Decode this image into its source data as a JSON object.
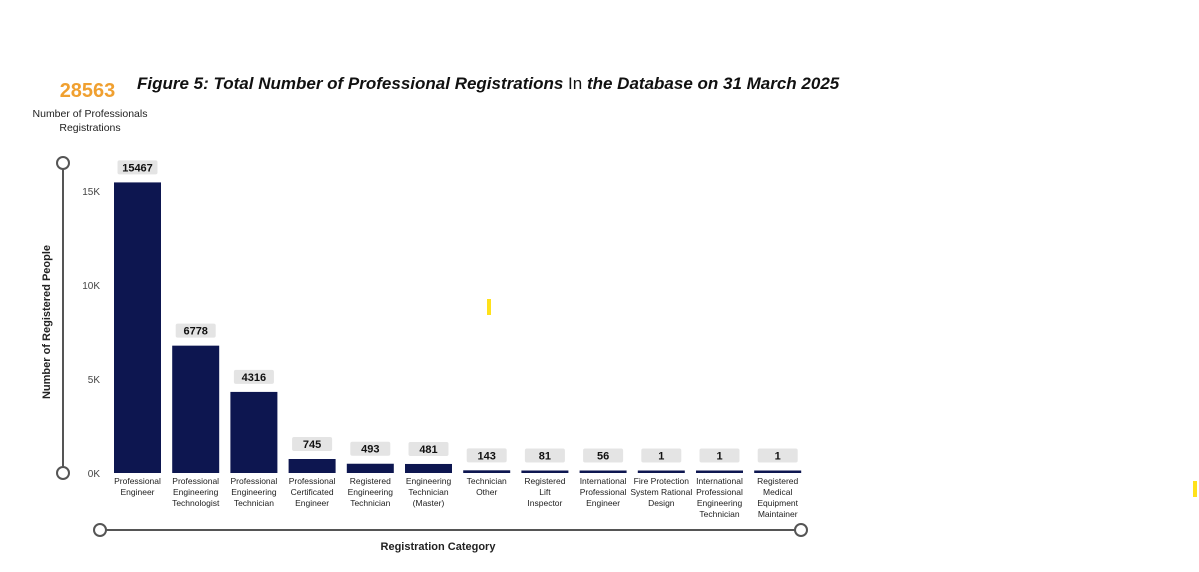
{
  "kpi": {
    "value": "28563",
    "label_line1": "Number of Professionals",
    "label_line2": "Registrations"
  },
  "title": {
    "part1": "Figure 5: Total Number of Professional Registrations",
    "part2": " In ",
    "part3": "the Database on 31 March 2025"
  },
  "colors": {
    "bar": "#0d1650",
    "label_bg": "#e4e4e4",
    "kpi": "#f0a030",
    "axis": "#555555",
    "accent": "#ffe11a"
  },
  "chart_data": {
    "type": "bar",
    "title": "Figure 5: Total Number of Professional Registrations In the Database on 31 March 2025",
    "xlabel": "Registration Category",
    "ylabel": "Number of Registered People",
    "ylim": [
      0,
      16500
    ],
    "yticks": [
      0,
      5000,
      10000,
      15000
    ],
    "ytick_labels": [
      "0K",
      "5K",
      "10K",
      "15K"
    ],
    "grid": false,
    "categories": [
      [
        "Professional",
        "Engineer"
      ],
      [
        "Professional",
        "Engineering",
        "Technologist"
      ],
      [
        "Professional",
        "Engineering",
        "Technician"
      ],
      [
        "Professional",
        "Certificated",
        "Engineer"
      ],
      [
        "Registered",
        "Engineering",
        "Technician"
      ],
      [
        "Engineering",
        "Technician",
        "(Master)"
      ],
      [
        "Technician",
        "Other"
      ],
      [
        "Registered",
        "Lift",
        "Inspector"
      ],
      [
        "International",
        "Professional",
        "Engineer"
      ],
      [
        "Fire Protection",
        "System Rational",
        "Design"
      ],
      [
        "International",
        "Professional",
        "Engineering",
        "Technician"
      ],
      [
        "Registered",
        "Medical",
        "Equipment",
        "Maintainer"
      ]
    ],
    "values": [
      15467,
      6778,
      4316,
      745,
      493,
      481,
      143,
      81,
      56,
      1,
      1,
      1
    ]
  }
}
